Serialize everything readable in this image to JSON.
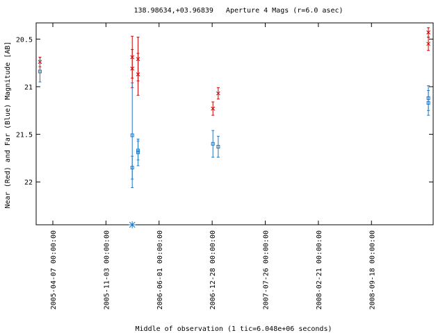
{
  "chart_data": {
    "type": "scatter",
    "title": "138.98634,+03.96839   Aperture 4 Mags (r=6.0 asec)",
    "xlabel": "Middle of observation (1 tic=6.048e+06 seconds)",
    "ylabel": "Near (Red) and Far (Blue) Magnitude [AB]",
    "x_axis": {
      "type": "date",
      "range": [
        "2005-01-31",
        "2009-05-20"
      ],
      "ticks": [
        "2005-04-07 00:00:00",
        "2005-11-03 00:00:00",
        "2006-06-01 00:00:00",
        "2006-12-28 00:00:00",
        "2007-07-26 00:00:00",
        "2008-02-21 00:00:00",
        "2008-09-18 00:00:00"
      ]
    },
    "y_axis": {
      "reversed": true,
      "range": [
        20.33,
        22.45
      ],
      "ticks": [
        20.5,
        21,
        21.5,
        22
      ]
    },
    "grid": false,
    "legend": "none",
    "series": [
      {
        "color": "#cc0000",
        "marker": "x",
        "points": [
          {
            "x": "2005-02-15",
            "y": 20.74,
            "err": 0.05
          },
          {
            "x": "2006-02-15",
            "y": 20.69,
            "err": 0.22
          },
          {
            "x": "2006-02-15",
            "y": 20.81,
            "err": 0.2
          },
          {
            "x": "2006-03-10",
            "y": 20.71,
            "err": 0.23
          },
          {
            "x": "2006-03-10",
            "y": 20.87,
            "err": 0.22
          },
          {
            "x": "2006-12-31",
            "y": 21.23,
            "err": 0.07
          },
          {
            "x": "2007-01-21",
            "y": 21.07,
            "err": 0.06
          },
          {
            "x": "2009-05-01",
            "y": 20.43,
            "err": 0.05
          },
          {
            "x": "2009-05-01",
            "y": 20.55,
            "err": 0.07
          }
        ]
      },
      {
        "color": "#1f77c4",
        "marker": "square",
        "points": [
          {
            "x": "2005-02-15",
            "y": 20.84,
            "err": 0.11
          },
          {
            "x": "2006-02-15",
            "y": 21.51,
            "err": 0.55
          },
          {
            "x": "2006-02-15",
            "y": 21.85,
            "err": 0.12
          },
          {
            "x": "2006-03-10",
            "y": 21.67,
            "err": 0.1
          },
          {
            "x": "2006-03-10",
            "y": 21.69,
            "err": 0.14
          },
          {
            "x": "2006-12-31",
            "y": 21.6,
            "err": 0.14
          },
          {
            "x": "2007-01-21",
            "y": 21.63,
            "err": 0.11
          },
          {
            "x": "2009-05-01",
            "y": 21.12,
            "err": 0.13
          },
          {
            "x": "2009-05-01",
            "y": 21.17,
            "err": 0.13
          }
        ]
      }
    ],
    "upper_limits": [
      {
        "x": "2006-02-15",
        "color": "#1f77c4",
        "marker": "asterisk"
      }
    ]
  }
}
